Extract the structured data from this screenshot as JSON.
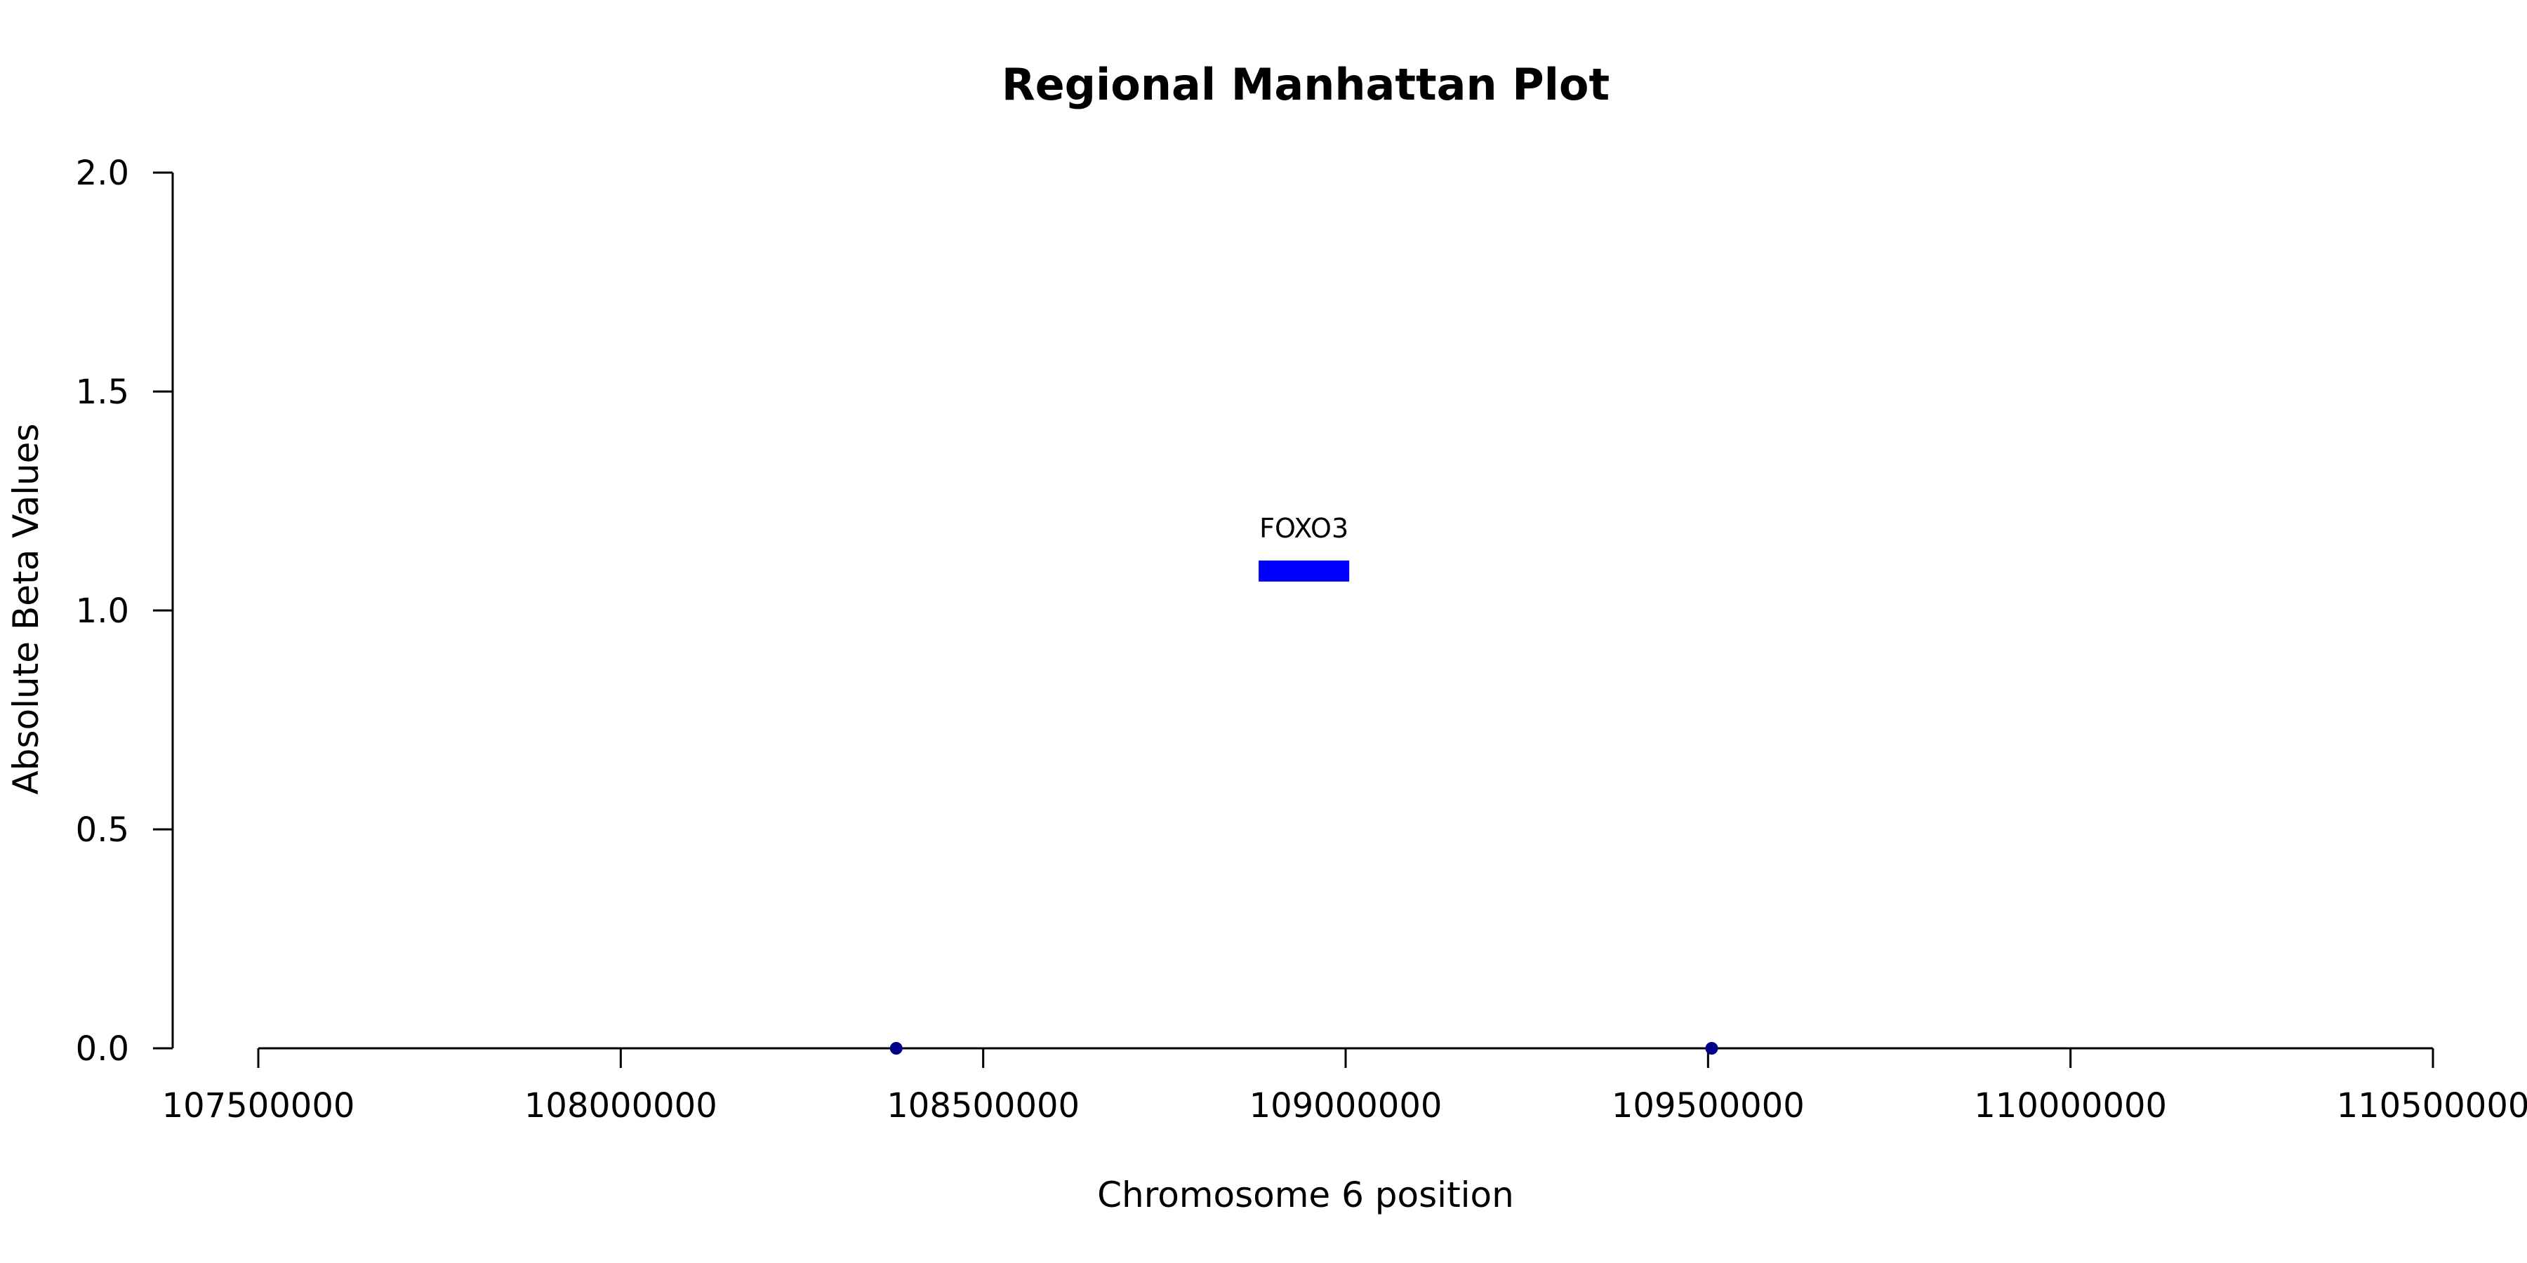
{
  "chart_data": {
    "type": "scatter",
    "title": "Regional Manhattan Plot",
    "xlabel": "Chromosome 6 position",
    "ylabel": "Absolute Beta Values",
    "xlim": [
      107500000,
      110500000
    ],
    "ylim": [
      0,
      2
    ],
    "xticks": [
      107500000,
      108000000,
      108500000,
      109000000,
      109500000,
      110000000,
      110500000
    ],
    "xtick_labels": [
      "107500000",
      "108000000",
      "108500000",
      "109000000",
      "109500000",
      "110000000",
      "110500000"
    ],
    "yticks": [
      0,
      0.5,
      1,
      1.5,
      2
    ],
    "ytick_labels": [
      "0.0",
      "0.5",
      "1.0",
      "1.5",
      "2.0"
    ],
    "grid": false,
    "legend": "none",
    "points": [
      {
        "x": 108380000,
        "y": 0
      },
      {
        "x": 109505000,
        "y": 0
      }
    ],
    "point_color": "#00008b",
    "genes": [
      {
        "name": "FOXO3",
        "start": 108880000,
        "end": 109005000,
        "y": 1.09,
        "color": "#0000ff"
      }
    ]
  }
}
